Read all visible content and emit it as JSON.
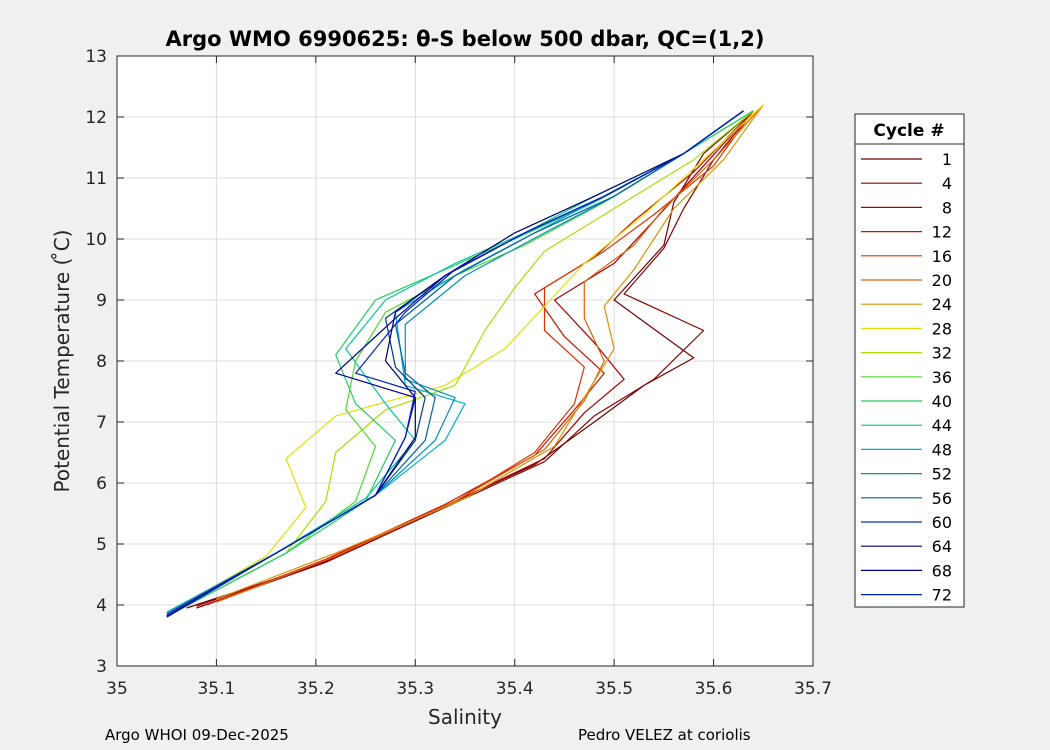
{
  "chart_data": {
    "type": "line",
    "title": "Argo WMO 6990625: θ-S below 500 dbar,  QC=(1,2)",
    "xlabel": "Salinity",
    "ylabel": "Potential Temperature ( ̊C)",
    "xlim": [
      35,
      35.7
    ],
    "ylim": [
      3,
      13
    ],
    "xticks": [
      "35",
      "35.1",
      "35.2",
      "35.3",
      "35.4",
      "35.5",
      "35.6",
      "35.7"
    ],
    "yticks": [
      "3",
      "4",
      "5",
      "6",
      "7",
      "8",
      "9",
      "10",
      "11",
      "12",
      "13"
    ],
    "grid": true,
    "legend_title": "Cycle #",
    "legend_position": "right",
    "series": [
      {
        "name": "1",
        "color": "#6e0000",
        "x": [
          35.07,
          35.2,
          35.32,
          35.42,
          35.48,
          35.53,
          35.58,
          35.5,
          35.55,
          35.56,
          35.59,
          35.64
        ],
        "y": [
          3.95,
          4.65,
          5.55,
          6.3,
          7.0,
          7.6,
          8.05,
          9.0,
          9.9,
          10.6,
          11.4,
          12.1
        ]
      },
      {
        "name": "4",
        "color": "#8a0000",
        "x": [
          35.08,
          35.21,
          35.33,
          35.43,
          35.48,
          35.54,
          35.59,
          35.51,
          35.55,
          35.57,
          35.6,
          35.64
        ],
        "y": [
          3.95,
          4.7,
          5.6,
          6.35,
          7.1,
          7.7,
          8.5,
          9.1,
          9.85,
          10.5,
          11.3,
          12.1
        ]
      },
      {
        "name": "8",
        "color": "#a80000",
        "x": [
          35.08,
          35.21,
          35.33,
          35.43,
          35.47,
          35.51,
          35.48,
          35.44,
          35.5,
          35.54,
          35.59,
          35.64
        ],
        "y": [
          3.98,
          4.72,
          5.62,
          6.4,
          7.15,
          7.7,
          8.3,
          9.0,
          9.6,
          10.3,
          11.2,
          12.1
        ]
      },
      {
        "name": "12",
        "color": "#c81400",
        "x": [
          35.09,
          35.21,
          35.33,
          35.42,
          35.46,
          35.49,
          35.45,
          35.42,
          35.48,
          35.52,
          35.58,
          35.64
        ],
        "y": [
          4.0,
          4.75,
          5.65,
          6.45,
          7.2,
          7.8,
          8.4,
          9.1,
          9.7,
          10.3,
          11.1,
          12.1
        ]
      },
      {
        "name": "16",
        "color": "#e03000",
        "x": [
          35.1,
          35.22,
          35.34,
          35.42,
          35.46,
          35.47,
          35.43,
          35.43,
          35.49,
          35.54,
          35.6,
          35.64
        ],
        "y": [
          4.05,
          4.8,
          5.7,
          6.5,
          7.3,
          7.9,
          8.5,
          9.2,
          9.8,
          10.4,
          11.2,
          12.1
        ]
      },
      {
        "name": "20",
        "color": "#e06000",
        "x": [
          35.1,
          35.22,
          35.34,
          35.43,
          35.47,
          35.49,
          35.47,
          35.47,
          35.52,
          35.55,
          35.6,
          35.65
        ],
        "y": [
          4.05,
          4.8,
          5.7,
          6.55,
          7.35,
          8.0,
          8.7,
          9.3,
          9.9,
          10.5,
          11.3,
          12.2
        ]
      },
      {
        "name": "24",
        "color": "#e09000",
        "x": [
          35.1,
          35.22,
          35.35,
          35.44,
          35.47,
          35.5,
          35.49,
          35.52,
          35.54,
          35.56,
          35.61,
          35.65
        ],
        "y": [
          4.1,
          4.85,
          5.75,
          6.6,
          7.4,
          8.2,
          8.9,
          9.5,
          10.0,
          10.5,
          11.3,
          12.2
        ]
      },
      {
        "name": "28",
        "color": "#e6e000",
        "x": [
          35.05,
          35.15,
          35.19,
          35.17,
          35.22,
          35.33,
          35.39,
          35.43,
          35.47,
          35.53,
          35.59,
          35.65
        ],
        "y": [
          3.85,
          4.8,
          5.6,
          6.4,
          7.1,
          7.6,
          8.2,
          8.9,
          9.6,
          10.4,
          11.3,
          12.2
        ]
      },
      {
        "name": "32",
        "color": "#a8e000",
        "x": [
          35.06,
          35.17,
          35.21,
          35.22,
          35.27,
          35.34,
          35.37,
          35.4,
          35.43,
          35.5,
          35.58,
          35.64
        ],
        "y": [
          3.9,
          4.85,
          5.7,
          6.5,
          7.2,
          7.6,
          8.5,
          9.2,
          9.8,
          10.5,
          11.3,
          12.1
        ]
      },
      {
        "name": "36",
        "color": "#50d830",
        "x": [
          35.06,
          35.17,
          35.24,
          35.26,
          35.23,
          35.24,
          35.27,
          35.34,
          35.41,
          35.49,
          35.57,
          35.64
        ],
        "y": [
          3.9,
          4.85,
          5.7,
          6.6,
          7.2,
          8.0,
          8.8,
          9.4,
          9.9,
          10.6,
          11.4,
          12.1
        ]
      },
      {
        "name": "40",
        "color": "#20d060",
        "x": [
          35.06,
          35.17,
          35.25,
          35.28,
          35.24,
          35.22,
          35.26,
          35.33,
          35.4,
          35.48,
          35.57,
          35.64
        ],
        "y": [
          3.9,
          4.85,
          5.7,
          6.7,
          7.3,
          8.1,
          9.0,
          9.5,
          10.0,
          10.6,
          11.4,
          12.1
        ]
      },
      {
        "name": "44",
        "color": "#00c8a0",
        "x": [
          35.05,
          35.16,
          35.25,
          35.3,
          35.27,
          35.23,
          35.27,
          35.34,
          35.41,
          35.48,
          35.57,
          35.63
        ],
        "y": [
          3.88,
          4.85,
          5.75,
          6.7,
          7.3,
          8.2,
          9.0,
          9.6,
          10.1,
          10.7,
          11.4,
          12.1
        ]
      },
      {
        "name": "48",
        "color": "#00b0d8",
        "x": [
          35.05,
          35.16,
          35.26,
          35.33,
          35.35,
          35.29,
          35.28,
          35.35,
          35.42,
          35.49,
          35.57,
          35.63
        ],
        "y": [
          3.88,
          4.85,
          5.8,
          6.7,
          7.3,
          7.6,
          8.8,
          9.5,
          10.1,
          10.7,
          11.4,
          12.1
        ]
      },
      {
        "name": "52",
        "color": "#0090c0",
        "x": [
          35.05,
          35.16,
          35.26,
          35.32,
          35.34,
          35.29,
          35.29,
          35.35,
          35.43,
          35.5,
          35.57,
          35.63
        ],
        "y": [
          3.85,
          4.85,
          5.8,
          6.7,
          7.4,
          7.7,
          8.6,
          9.4,
          10.1,
          10.7,
          11.4,
          12.1
        ]
      },
      {
        "name": "56",
        "color": "#0060a0",
        "x": [
          35.05,
          35.16,
          35.26,
          35.31,
          35.32,
          35.29,
          35.28,
          35.34,
          35.42,
          35.5,
          35.57,
          35.63
        ],
        "y": [
          3.85,
          4.85,
          5.8,
          6.7,
          7.4,
          7.8,
          8.6,
          9.4,
          10.1,
          10.7,
          11.4,
          12.1
        ]
      },
      {
        "name": "60",
        "color": "#003a90",
        "x": [
          35.05,
          35.16,
          35.26,
          35.3,
          35.31,
          35.28,
          35.27,
          35.33,
          35.41,
          35.49,
          35.57,
          35.63
        ],
        "y": [
          3.85,
          4.85,
          5.8,
          6.7,
          7.4,
          7.9,
          8.7,
          9.4,
          10.1,
          10.7,
          11.4,
          12.1
        ]
      },
      {
        "name": "64",
        "color": "#00006e",
        "x": [
          35.05,
          35.16,
          35.26,
          35.3,
          35.3,
          35.27,
          35.28,
          35.33,
          35.4,
          35.48,
          35.57,
          35.63
        ],
        "y": [
          3.82,
          4.85,
          5.8,
          6.75,
          7.4,
          8.0,
          8.8,
          9.4,
          10.1,
          10.7,
          11.4,
          12.1
        ]
      },
      {
        "name": "68",
        "color": "#00009a",
        "x": [
          35.05,
          35.16,
          35.26,
          35.29,
          35.3,
          35.22,
          35.28,
          35.33,
          35.41,
          35.49,
          35.57,
          35.63
        ],
        "y": [
          3.82,
          4.85,
          5.8,
          6.75,
          7.4,
          7.8,
          8.7,
          9.4,
          10.1,
          10.7,
          11.4,
          12.1
        ]
      },
      {
        "name": "72",
        "color": "#0020c8",
        "x": [
          35.05,
          35.16,
          35.26,
          35.29,
          35.3,
          35.24,
          35.29,
          35.34,
          35.41,
          35.49,
          35.57,
          35.63
        ],
        "y": [
          3.8,
          4.85,
          5.8,
          6.75,
          7.5,
          7.8,
          8.8,
          9.5,
          10.1,
          10.7,
          11.4,
          12.1
        ]
      }
    ]
  },
  "footer": {
    "left": "Argo WHOI 09-Dec-2025",
    "right": "Pedro VELEZ at coriolis"
  }
}
